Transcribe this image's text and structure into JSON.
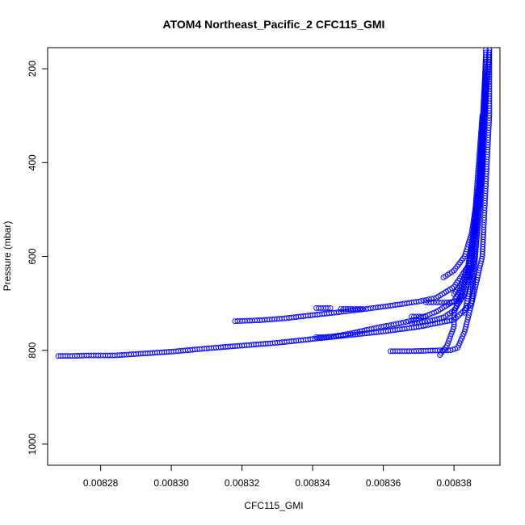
{
  "chart_data": {
    "type": "scatter",
    "title": "ATOM4 Northeast_Pacific_2 CFC115_GMI",
    "xlabel": "CFC115_GMI",
    "ylabel": "Pressure (mbar)",
    "xlim": [
      0.008265,
      0.008393
    ],
    "ylim": [
      1045,
      155
    ],
    "y_inverted": true,
    "grid": false,
    "legend": "none",
    "x_ticks": [
      {
        "value": 0.00828,
        "label": "0.00828"
      },
      {
        "value": 0.0083,
        "label": "0.00830"
      },
      {
        "value": 0.00832,
        "label": "0.00832"
      },
      {
        "value": 0.00834,
        "label": "0.00834"
      },
      {
        "value": 0.00836,
        "label": "0.00836"
      },
      {
        "value": 0.00838,
        "label": "0.00838"
      }
    ],
    "y_ticks": [
      {
        "value": 200,
        "label": "200"
      },
      {
        "value": 400,
        "label": "400"
      },
      {
        "value": 600,
        "label": "600"
      },
      {
        "value": 800,
        "label": "800"
      },
      {
        "value": 1000,
        "label": "1000"
      }
    ],
    "marker": {
      "shape": "open-circle",
      "color": "#0000ff"
    },
    "series": [
      {
        "profiles": [
          {
            "x": [
              0.008268,
              0.008272,
              0.008276,
              0.00828,
              0.008284,
              0.00829,
              0.0083,
              0.00831,
              0.00832,
              0.00833,
              0.00834,
              0.00835,
              0.00836,
              0.00837,
              0.00838,
              0.008385,
              0.008388,
              0.008389,
              0.00839,
              0.00839
            ],
            "y": [
              812,
              812,
              811,
              811,
              811,
              808,
              803,
              796,
              790,
              784,
              776,
              768,
              760,
              750,
              735,
              700,
              600,
              450,
              300,
              160
            ]
          },
          {
            "x": [
              0.008318,
              0.008325,
              0.008332,
              0.00834,
              0.008346,
              0.008355,
              0.008362,
              0.00837,
              0.008375,
              0.00838,
              0.008384,
              0.008386,
              0.008388,
              0.00839
            ],
            "y": [
              738,
              736,
              732,
              725,
              720,
              712,
              705,
              696,
              688,
              665,
              620,
              520,
              380,
              160
            ]
          },
          {
            "x": [
              0.008341,
              0.008343,
              0.008345,
              0.008348,
              0.008352,
              0.008358,
              0.008365,
              0.00837,
              0.008375,
              0.00838,
              0.008384,
              0.008387,
              0.008389
            ],
            "y": [
              772,
              772,
              771,
              768,
              762,
              752,
              742,
              733,
              718,
              695,
              640,
              500,
              250
            ]
          },
          {
            "x": [
              0.008341,
              0.008343,
              0.008345
            ],
            "y": [
              710,
              710,
              710
            ]
          },
          {
            "x": [
              0.008348,
              0.00835,
              0.008352,
              0.008354
            ],
            "y": [
              712,
              712,
              712,
              712
            ]
          },
          {
            "x": [
              0.008362,
              0.008364,
              0.008368,
              0.008372,
              0.008376,
              0.008379,
              0.008381,
              0.008383,
              0.008385,
              0.008386,
              0.008388,
              0.008389
            ],
            "y": [
              802,
              802,
              802,
              801,
              800,
              800,
              795,
              760,
              700,
              600,
              400,
              160
            ]
          },
          {
            "x": [
              0.008368,
              0.008371,
              0.008374,
              0.008377,
              0.00838,
              0.008383,
              0.008386,
              0.008388,
              0.008389
            ],
            "y": [
              742,
              740,
              736,
              730,
              715,
              680,
              600,
              420,
              180
            ]
          },
          {
            "x": [
              0.008368,
              0.00837,
              0.008372
            ],
            "y": [
              728,
              728,
              728
            ]
          },
          {
            "x": [
              0.008372,
              0.008375,
              0.008378,
              0.00838,
              0.008382,
              0.008385,
              0.008388
            ],
            "y": [
              698,
              698,
              698,
              697,
              690,
              600,
              300
            ]
          },
          {
            "x": [
              0.008376,
              0.008378,
              0.008379,
              0.00838,
              0.00838,
              0.008381,
              0.008382
            ],
            "y": [
              810,
              790,
              770,
              750,
              720,
              700,
              680
            ]
          },
          {
            "x": [
              0.008377,
              0.00838,
              0.008383,
              0.008385,
              0.008387,
              0.008388,
              0.008389
            ],
            "y": [
              645,
              630,
              600,
              550,
              450,
              320,
              180
            ]
          },
          {
            "x": [
              0.00838,
              0.008382,
              0.008384,
              0.008386,
              0.008388,
              0.008389
            ],
            "y": [
              680,
              660,
              620,
              540,
              400,
              200
            ]
          },
          {
            "x": [
              0.008383,
              0.008385,
              0.008386,
              0.008387,
              0.008388,
              0.00839
            ],
            "y": [
              720,
              650,
              560,
              460,
              340,
              160
            ]
          }
        ]
      }
    ]
  }
}
